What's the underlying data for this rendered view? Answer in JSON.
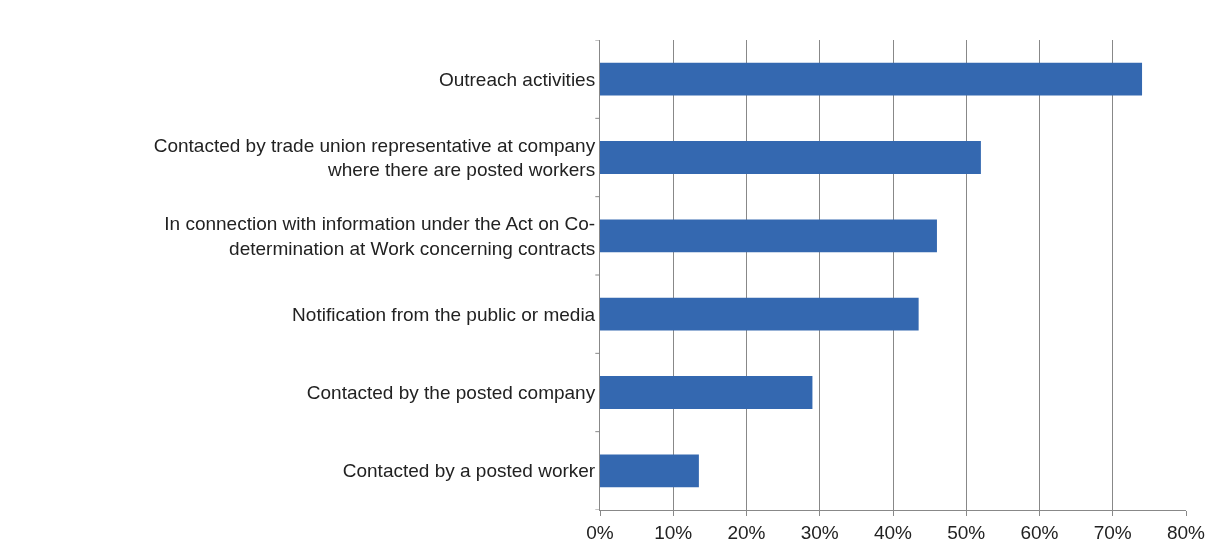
{
  "chart_data": {
    "type": "bar",
    "orientation": "horizontal",
    "categories": [
      "Outreach activities",
      "Contacted by trade union representative at company\nwhere there are posted workers",
      "In connection with information under the Act on Co-\ndetermination at Work concerning contracts",
      "Notification from the public or media",
      "Contacted by the posted company",
      "Contacted by a posted worker"
    ],
    "values": [
      74,
      52,
      46,
      43.5,
      29,
      13.5
    ],
    "color": "#3468b0",
    "xlim": [
      0,
      80
    ],
    "xticks": [
      {
        "value": 0,
        "label": "0%"
      },
      {
        "value": 10,
        "label": "10%"
      },
      {
        "value": 20,
        "label": "20%"
      },
      {
        "value": 30,
        "label": "30%"
      },
      {
        "value": 40,
        "label": "40%"
      },
      {
        "value": 50,
        "label": "50%"
      },
      {
        "value": 60,
        "label": "60%"
      },
      {
        "value": 70,
        "label": "70%"
      },
      {
        "value": 80,
        "label": "80%"
      }
    ],
    "grid": "x"
  }
}
